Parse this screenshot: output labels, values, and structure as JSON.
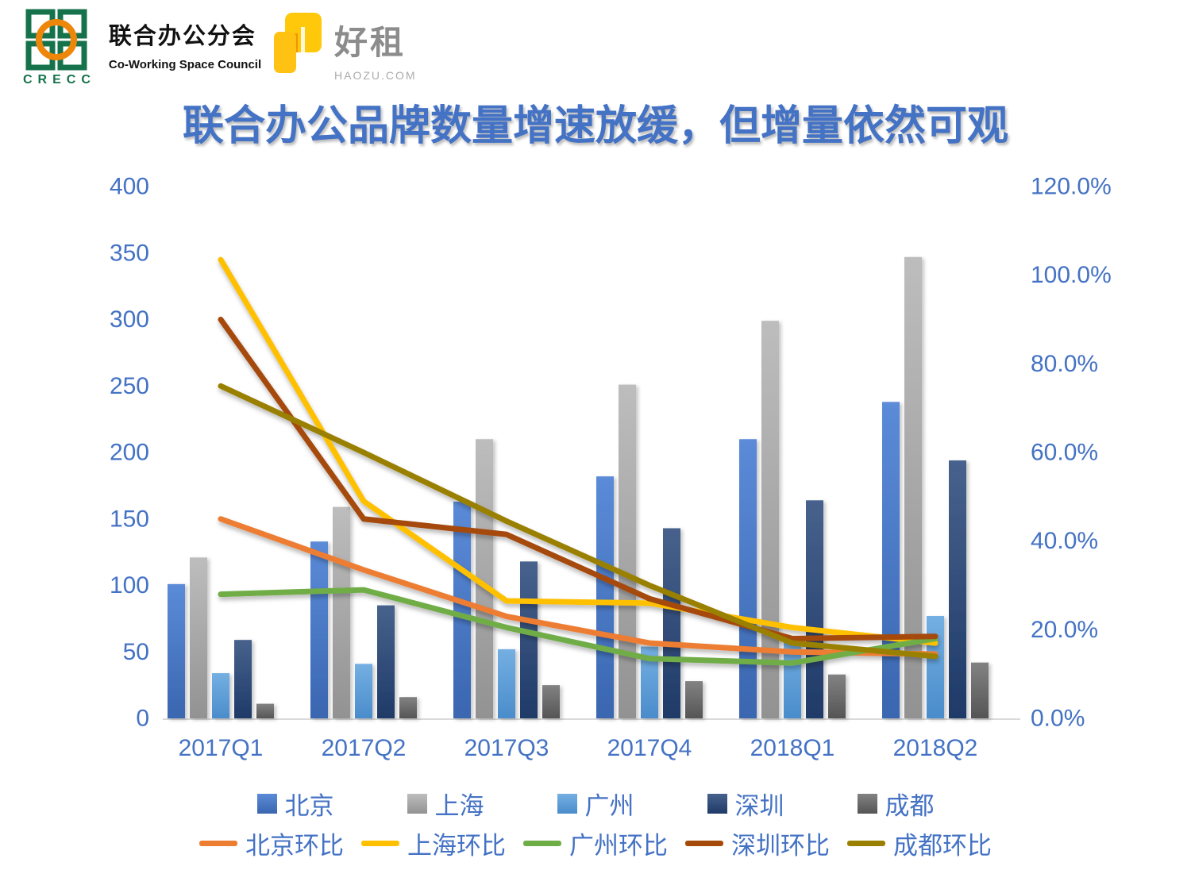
{
  "header": {
    "crecc": {
      "title_cn": "联合办公分会",
      "title_en": "Co-Working Space Council",
      "abbr": "CRECC",
      "green": "#15724B",
      "orange": "#EE8609"
    },
    "haozu": {
      "brand": "好租",
      "domain": "HAOZU.COM",
      "yellow": "#FFC80B"
    }
  },
  "title": "联合办公品牌数量增速放缓，但增量依然可观",
  "colors": {
    "title_text": "#4472C4",
    "axis_text": "#4472C4",
    "baseline": "#D9D9D9"
  },
  "chart_data": {
    "type": "combo bar+line (dual axis)",
    "title": "联合办公品牌数量增速放缓，但增量依然可观",
    "categories": [
      "2017Q1",
      "2017Q2",
      "2017Q3",
      "2017Q4",
      "2018Q1",
      "2018Q2"
    ],
    "left_axis": {
      "min": 0,
      "max": 400,
      "step": 50,
      "ticks": [
        0,
        50,
        100,
        150,
        200,
        250,
        300,
        350,
        400
      ]
    },
    "right_axis": {
      "min": 0,
      "max": 120,
      "step": 20,
      "labels": [
        "0.0%",
        "20.0%",
        "40.0%",
        "60.0%",
        "80.0%",
        "100.0%",
        "120.0%"
      ]
    },
    "grid": false,
    "legend_position": "bottom, two rows (bars row then lines row)",
    "bar_series": [
      {
        "name": "北京",
        "color_top": "#5B8BD8",
        "color_bottom": "#3A66B0",
        "values": [
          101,
          133,
          163,
          182,
          210,
          238
        ]
      },
      {
        "name": "上海",
        "color_top": "#BDBDBD",
        "color_bottom": "#929292",
        "values": [
          121,
          159,
          210,
          251,
          299,
          347
        ]
      },
      {
        "name": "广州",
        "color_top": "#74AFE2",
        "color_bottom": "#4A8CCB",
        "values": [
          34,
          41,
          52,
          54,
          60,
          77
        ]
      },
      {
        "name": "深圳",
        "color_top": "#47628C",
        "color_bottom": "#1F3A68",
        "values": [
          59,
          85,
          118,
          143,
          164,
          194
        ]
      },
      {
        "name": "成都",
        "color_top": "#828282",
        "color_bottom": "#555555",
        "values": [
          11,
          16,
          25,
          28,
          33,
          42
        ]
      }
    ],
    "line_series": [
      {
        "name": "北京环比",
        "color": "#ED7D31",
        "values_pct": [
          45,
          33.5,
          23,
          17,
          15,
          14.5
        ]
      },
      {
        "name": "上海环比",
        "color": "#FFC000",
        "values_pct": [
          103.5,
          49,
          26.5,
          26,
          20.5,
          17
        ]
      },
      {
        "name": "广州环比",
        "color": "#6FAD47",
        "values_pct": [
          28,
          29,
          20.5,
          13.5,
          12.5,
          18
        ]
      },
      {
        "name": "深圳环比",
        "color": "#A54A08",
        "values_pct": [
          90,
          45,
          41.5,
          27,
          18,
          18.5
        ]
      },
      {
        "name": "成都环比",
        "color": "#9A8000",
        "values_pct": [
          75,
          60,
          44.5,
          30,
          17,
          14
        ]
      }
    ]
  }
}
